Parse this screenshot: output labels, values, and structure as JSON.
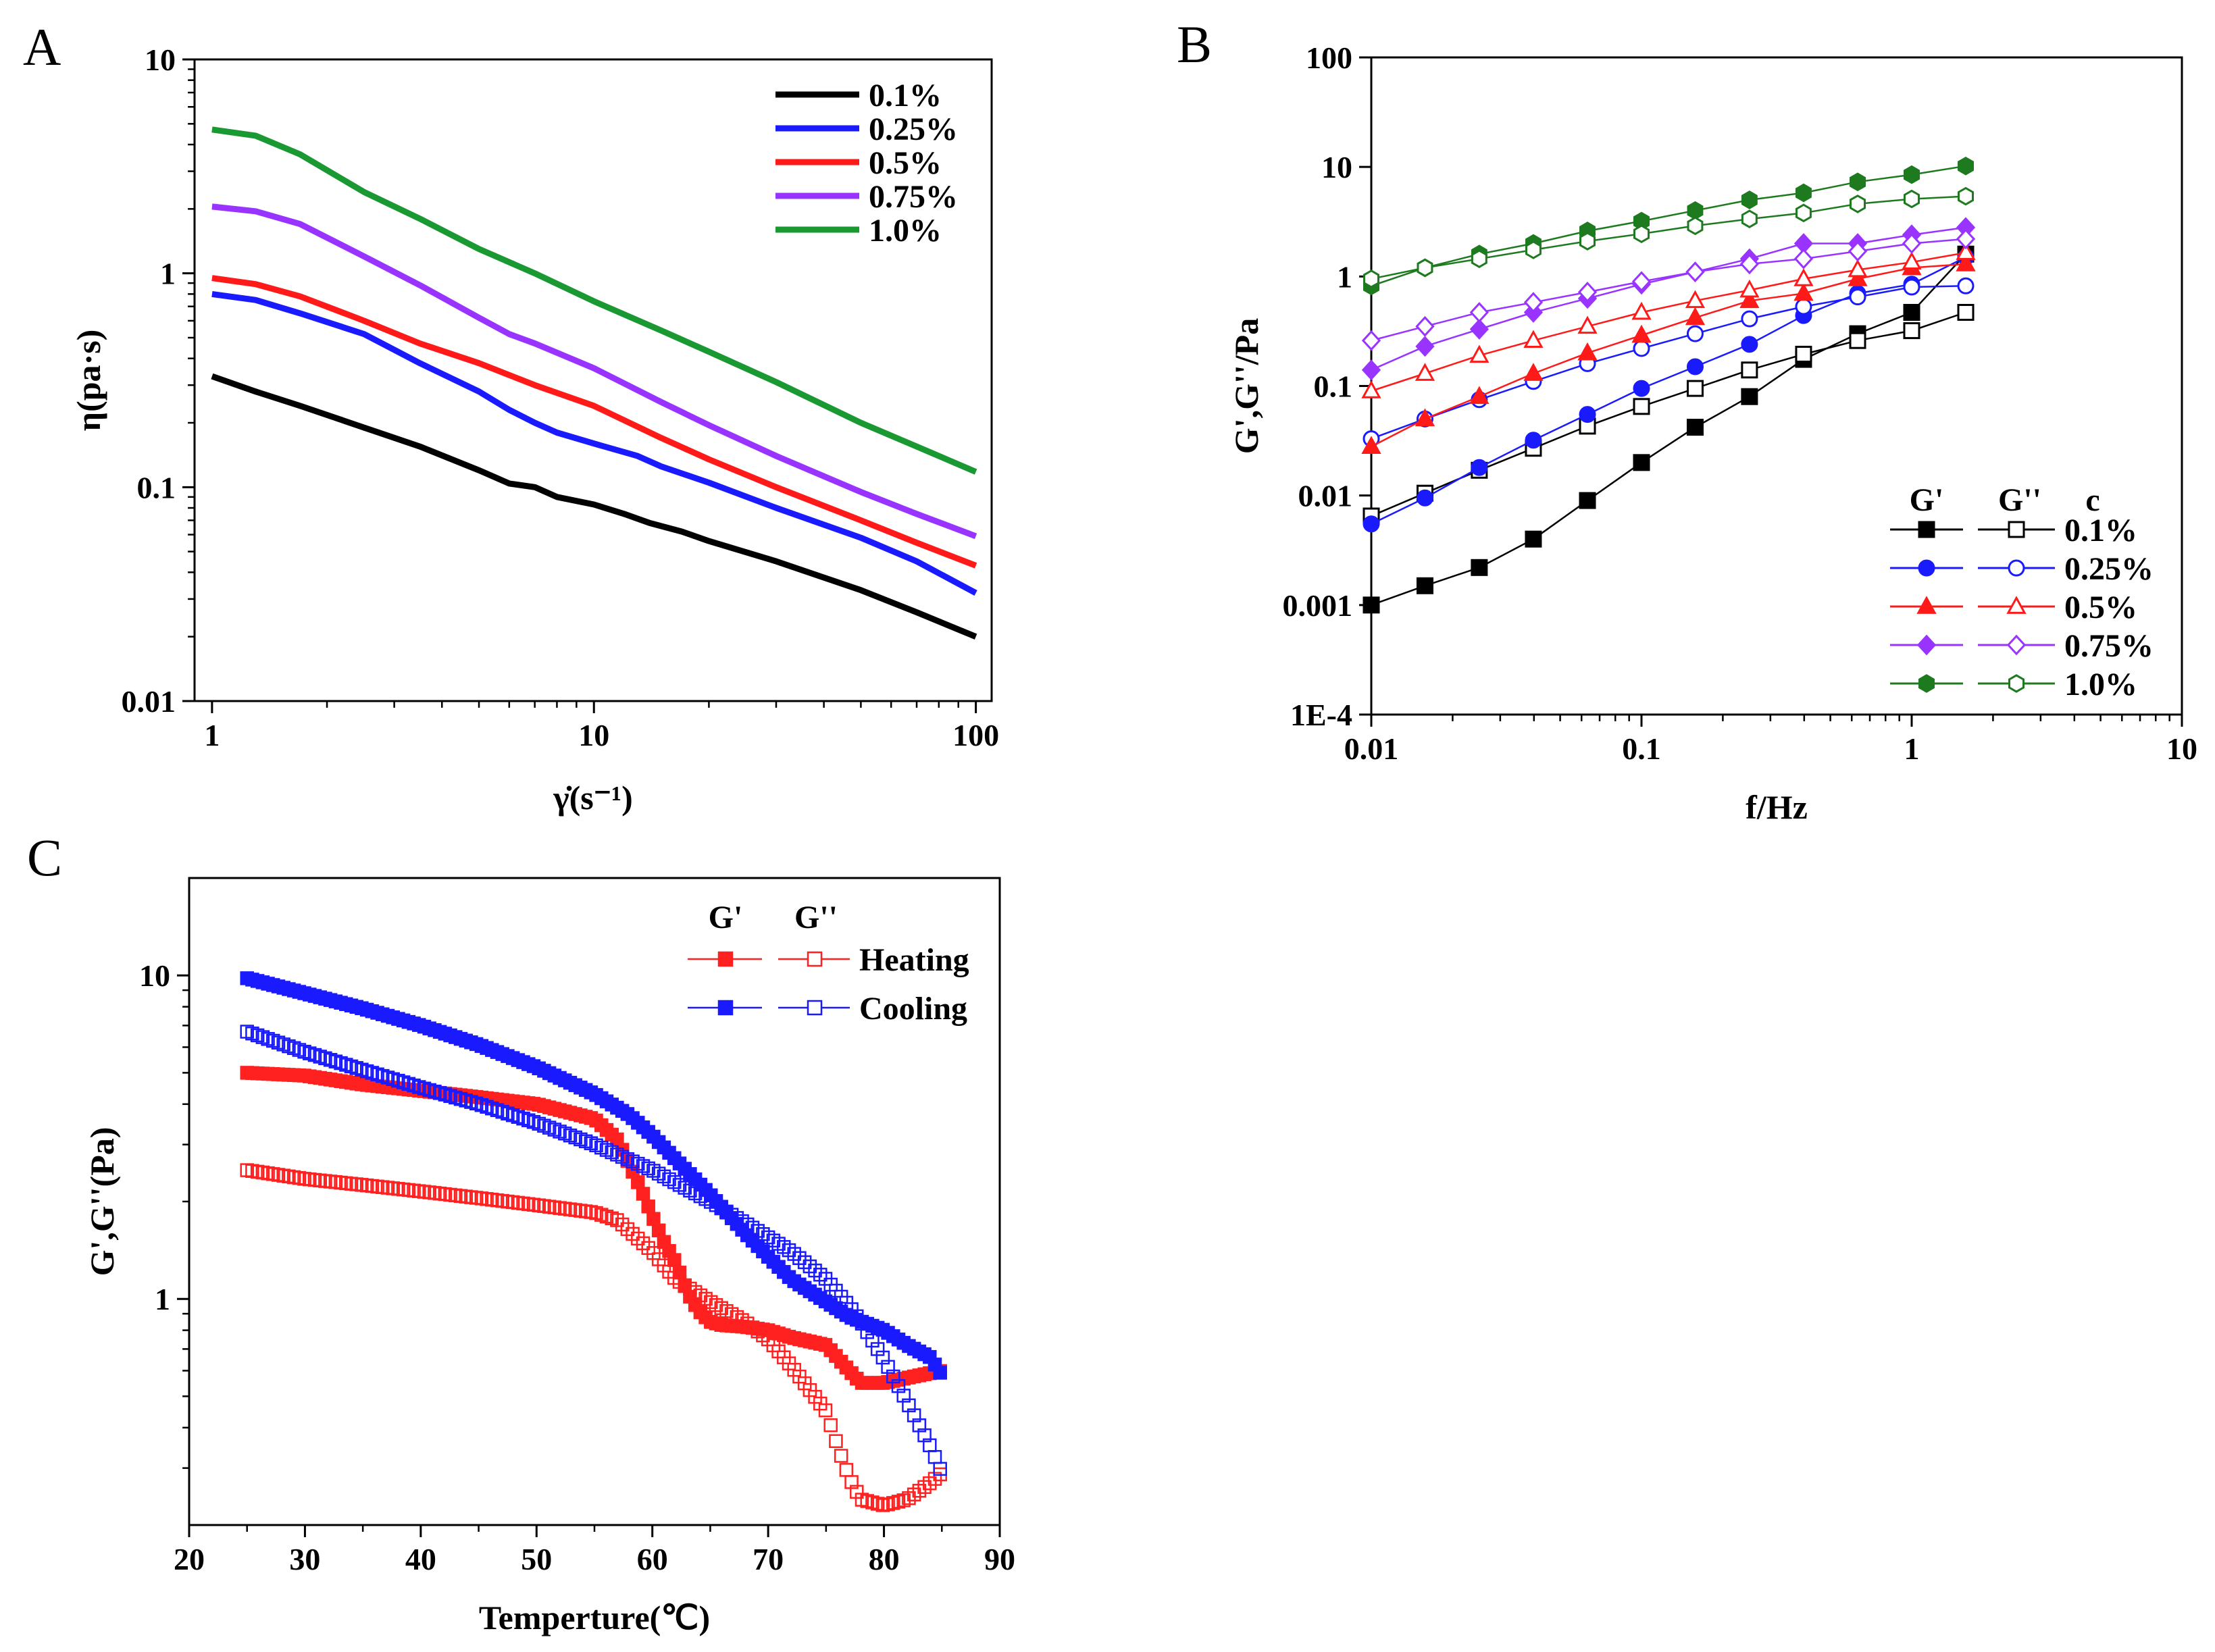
{
  "chart_data": [
    {
      "panel": "A",
      "type": "line",
      "xscale": "log",
      "yscale": "log",
      "xlim": [
        0.9,
        110
      ],
      "ylim": [
        0.01,
        10
      ],
      "xlabel": "γ̇(s⁻¹)",
      "ylabel": "η(pa·s)",
      "xticks": [
        1,
        10,
        100
      ],
      "xtick_labels": [
        "1",
        "10",
        "100"
      ],
      "yticks": [
        0.01,
        0.1,
        1,
        10
      ],
      "ytick_labels": [
        "0.01",
        "0.1",
        "1",
        "10"
      ],
      "legend_position": "top-right",
      "series": [
        {
          "name": "0.1%",
          "color": "#000000",
          "x": [
            1,
            1.3,
            1.7,
            2.5,
            3.5,
            5,
            6,
            7,
            8,
            10,
            12,
            14,
            17,
            20,
            30,
            50,
            70,
            100
          ],
          "y": [
            0.33,
            0.28,
            0.24,
            0.19,
            0.155,
            0.12,
            0.104,
            0.1,
            0.09,
            0.083,
            0.075,
            0.068,
            0.062,
            0.056,
            0.045,
            0.033,
            0.026,
            0.02
          ]
        },
        {
          "name": "0.25%",
          "color": "#1a1aff",
          "x": [
            1,
            1.3,
            1.7,
            2.5,
            3.5,
            5,
            6,
            7,
            8,
            10,
            13,
            15,
            20,
            30,
            50,
            70,
            100
          ],
          "y": [
            0.8,
            0.75,
            0.65,
            0.52,
            0.38,
            0.28,
            0.23,
            0.2,
            0.18,
            0.16,
            0.14,
            0.125,
            0.105,
            0.08,
            0.058,
            0.045,
            0.032
          ]
        },
        {
          "name": "0.5%",
          "color": "#ff1a1a",
          "x": [
            1,
            1.3,
            1.7,
            2.5,
            3.5,
            5,
            7,
            10,
            15,
            20,
            30,
            50,
            70,
            100
          ],
          "y": [
            0.95,
            0.89,
            0.78,
            0.6,
            0.47,
            0.38,
            0.3,
            0.24,
            0.17,
            0.135,
            0.1,
            0.07,
            0.055,
            0.043
          ]
        },
        {
          "name": "0.75%",
          "color": "#9933ff",
          "x": [
            1,
            1.3,
            1.7,
            2.5,
            3.5,
            5,
            6,
            7,
            10,
            15,
            20,
            30,
            50,
            70,
            100
          ],
          "y": [
            2.05,
            1.95,
            1.7,
            1.2,
            0.88,
            0.62,
            0.52,
            0.47,
            0.36,
            0.25,
            0.195,
            0.14,
            0.095,
            0.075,
            0.059
          ]
        },
        {
          "name": "1.0%",
          "color": "#1a9933",
          "x": [
            1,
            1.3,
            1.7,
            2.5,
            3.5,
            5,
            7,
            10,
            15,
            20,
            30,
            50,
            70,
            100
          ],
          "y": [
            4.7,
            4.4,
            3.6,
            2.4,
            1.8,
            1.3,
            1.0,
            0.74,
            0.54,
            0.43,
            0.31,
            0.2,
            0.155,
            0.118
          ]
        }
      ]
    },
    {
      "panel": "B",
      "type": "line",
      "xscale": "log",
      "yscale": "log",
      "xlim": [
        0.01,
        10
      ],
      "ylim": [
        0.0001,
        100
      ],
      "xlabel": "f/Hz",
      "ylabel": "G',G''/Pa",
      "xticks": [
        0.01,
        0.1,
        1,
        10
      ],
      "xtick_labels": [
        "0.01",
        "0.1",
        "1",
        "10"
      ],
      "yticks": [
        0.0001,
        0.001,
        0.01,
        0.1,
        1,
        10,
        100
      ],
      "ytick_labels": [
        "1E-4",
        "0.001",
        "0.01",
        "0.1",
        "1",
        "10",
        "100"
      ],
      "legend_position": "bottom-right",
      "legend_headers": [
        "G'",
        "G''",
        "c"
      ],
      "x": [
        0.01,
        0.0158,
        0.0251,
        0.0398,
        0.0631,
        0.1,
        0.158,
        0.251,
        0.398,
        0.631,
        1.0,
        1.585
      ],
      "series": [
        {
          "name": "0.1%",
          "color": "#000000",
          "marker": "square",
          "G1": [
            0.001,
            0.0015,
            0.0022,
            0.004,
            0.009,
            0.02,
            0.042,
            0.08,
            0.175,
            0.3,
            0.47,
            1.6
          ],
          "G2": [
            0.0065,
            0.0105,
            0.017,
            0.027,
            0.043,
            0.065,
            0.095,
            0.14,
            0.195,
            0.26,
            0.32,
            0.47
          ]
        },
        {
          "name": "0.25%",
          "color": "#1a1aff",
          "marker": "circle",
          "G1": [
            0.0055,
            0.0095,
            0.018,
            0.032,
            0.055,
            0.095,
            0.15,
            0.24,
            0.44,
            0.7,
            0.85,
            1.5
          ],
          "G2": [
            0.033,
            0.05,
            0.075,
            0.11,
            0.16,
            0.22,
            0.3,
            0.41,
            0.53,
            0.65,
            0.8,
            0.82
          ]
        },
        {
          "name": "0.5%",
          "color": "#ff1a1a",
          "marker": "triangle",
          "G1": [
            0.028,
            0.05,
            0.08,
            0.13,
            0.2,
            0.29,
            0.42,
            0.6,
            0.7,
            0.95,
            1.2,
            1.3
          ],
          "G2": [
            0.09,
            0.13,
            0.19,
            0.26,
            0.35,
            0.47,
            0.6,
            0.75,
            0.95,
            1.15,
            1.35,
            1.65
          ]
        },
        {
          "name": "0.75%",
          "color": "#9933ff",
          "marker": "diamond",
          "G1": [
            0.14,
            0.23,
            0.33,
            0.47,
            0.63,
            0.85,
            1.1,
            1.45,
            2.0,
            2.0,
            2.4,
            2.8
          ],
          "G2": [
            0.26,
            0.35,
            0.47,
            0.58,
            0.72,
            0.9,
            1.1,
            1.3,
            1.45,
            1.7,
            2.0,
            2.2
          ]
        },
        {
          "name": "1.0%",
          "color": "#1e7a1e",
          "marker": "hexagon",
          "G1": [
            0.82,
            1.2,
            1.6,
            2.0,
            2.6,
            3.2,
            4.0,
            5.0,
            5.8,
            7.3,
            8.5,
            10.2
          ],
          "G2": [
            0.95,
            1.2,
            1.45,
            1.75,
            2.1,
            2.45,
            2.9,
            3.35,
            3.8,
            4.6,
            5.1,
            5.4
          ]
        }
      ]
    },
    {
      "panel": "C",
      "type": "scatter",
      "xscale": "linear",
      "yscale": "log",
      "xlim": [
        20,
        90
      ],
      "ylim": [
        0.2,
        20
      ],
      "xlabel": "Temperture(℃)",
      "ylabel": "G',G''(Pa)",
      "xticks": [
        20,
        30,
        40,
        50,
        60,
        70,
        80,
        90
      ],
      "xtick_labels": [
        "20",
        "30",
        "40",
        "50",
        "60",
        "70",
        "80",
        "90"
      ],
      "yticks": [
        1,
        10
      ],
      "ytick_labels": [
        "1",
        "10"
      ],
      "legend_position": "top-right",
      "legend_headers": [
        "G'",
        "G''"
      ],
      "series": [
        {
          "name": "Heating",
          "color": "#ff2020",
          "kind": "G'",
          "filled": true,
          "x": [
            25,
            30,
            35,
            40,
            45,
            50,
            55,
            57,
            58,
            59,
            60,
            61,
            62,
            63,
            64,
            65,
            66,
            68,
            70,
            72,
            75,
            77,
            78,
            80,
            82,
            85
          ],
          "y": [
            5.0,
            4.9,
            4.6,
            4.4,
            4.2,
            4.0,
            3.6,
            3.1,
            2.6,
            2.2,
            1.8,
            1.5,
            1.3,
            1.05,
            0.92,
            0.85,
            0.83,
            0.82,
            0.8,
            0.76,
            0.72,
            0.6,
            0.55,
            0.55,
            0.57,
            0.6
          ]
        },
        {
          "name": "Heating",
          "color": "#ff2020",
          "kind": "G''",
          "filled": false,
          "x": [
            25,
            30,
            35,
            40,
            45,
            50,
            55,
            57,
            60,
            62,
            65,
            68,
            70,
            72,
            75,
            76,
            77,
            78,
            80,
            82,
            84,
            85
          ],
          "y": [
            2.5,
            2.35,
            2.25,
            2.15,
            2.05,
            1.95,
            1.85,
            1.75,
            1.4,
            1.15,
            0.98,
            0.85,
            0.75,
            0.62,
            0.45,
            0.35,
            0.28,
            0.24,
            0.23,
            0.24,
            0.27,
            0.29
          ]
        },
        {
          "name": "Cooling",
          "color": "#1a1aff",
          "kind": "G'",
          "filled": true,
          "x": [
            25,
            30,
            35,
            40,
            45,
            50,
            55,
            58,
            60,
            62,
            65,
            68,
            70,
            72,
            75,
            77,
            80,
            82,
            84,
            85
          ],
          "y": [
            9.8,
            8.8,
            7.9,
            7.0,
            6.1,
            5.2,
            4.3,
            3.7,
            3.2,
            2.7,
            2.1,
            1.6,
            1.35,
            1.15,
            0.98,
            0.88,
            0.8,
            0.72,
            0.66,
            0.58
          ]
        },
        {
          "name": "Cooling",
          "color": "#1a1aff",
          "kind": "G''",
          "filled": false,
          "x": [
            25,
            30,
            35,
            40,
            45,
            50,
            55,
            60,
            65,
            70,
            72,
            75,
            77,
            78,
            80,
            82,
            84,
            85
          ],
          "y": [
            6.7,
            5.8,
            5.1,
            4.5,
            4.0,
            3.5,
            3.0,
            2.5,
            2.0,
            1.55,
            1.4,
            1.15,
            0.95,
            0.85,
            0.65,
            0.48,
            0.35,
            0.29
          ]
        }
      ]
    }
  ],
  "panels": {
    "A": {
      "label": "A"
    },
    "B": {
      "label": "B"
    },
    "C": {
      "label": "C"
    }
  }
}
